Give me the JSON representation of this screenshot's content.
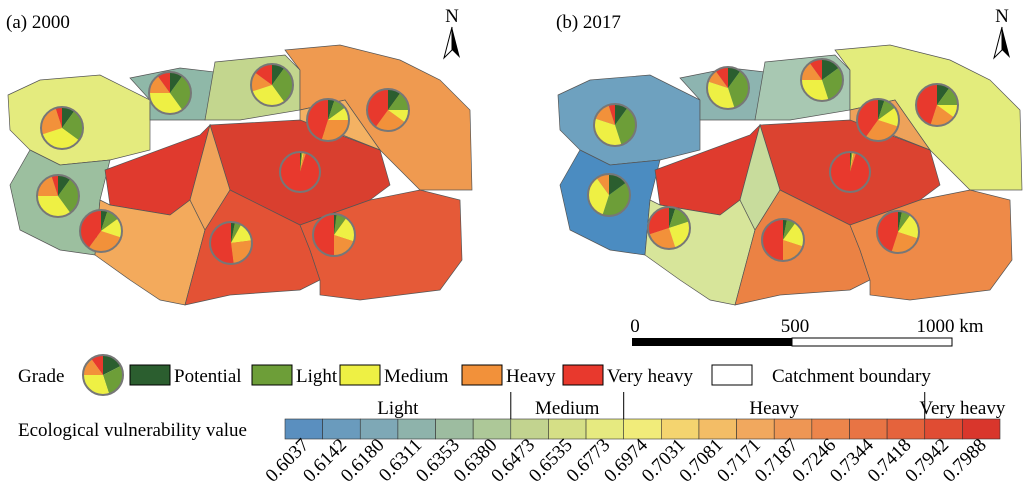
{
  "panels": [
    {
      "title": "(a) 2000",
      "north": "N",
      "region_colors": [
        "#e4eb7e",
        "#8fb8a8",
        "#c3d68e",
        "#ef9a50",
        "#f4b263",
        "#9cbf9f",
        "#e03a2e",
        "#d93f2f",
        "#f3aa5c",
        "#f1a45a",
        "#e35235",
        "#e55a38"
      ],
      "pies": [
        [
          10,
          30,
          35,
          15,
          10
        ],
        [
          10,
          30,
          30,
          15,
          15
        ],
        [
          10,
          15,
          10,
          25,
          40
        ],
        [
          5,
          10,
          10,
          30,
          45
        ],
        [
          10,
          25,
          35,
          25,
          5
        ],
        [
          10,
          30,
          35,
          20,
          5
        ],
        [
          5,
          10,
          15,
          30,
          40
        ],
        [
          1,
          1,
          1,
          2,
          95
        ],
        [
          3,
          5,
          15,
          25,
          52
        ],
        [
          2,
          8,
          20,
          20,
          50
        ]
      ]
    },
    {
      "title": "(b) 2017",
      "north": "N",
      "region_colors": [
        "#6ea1bf",
        "#8db4b0",
        "#a8c8b2",
        "#e3ec7c",
        "#eea25a",
        "#4b8cc1",
        "#df3b2e",
        "#db4330",
        "#d7e59a",
        "#c8dc9c",
        "#eb8244",
        "#ee8a48"
      ],
      "pies": [
        [
          10,
          35,
          35,
          10,
          10
        ],
        [
          15,
          30,
          30,
          15,
          10
        ],
        [
          10,
          15,
          10,
          20,
          45
        ],
        [
          5,
          10,
          15,
          30,
          40
        ],
        [
          10,
          35,
          35,
          15,
          5
        ],
        [
          15,
          40,
          35,
          10,
          0
        ],
        [
          5,
          15,
          25,
          25,
          30
        ],
        [
          1,
          1,
          1,
          2,
          95
        ],
        [
          3,
          7,
          20,
          20,
          50
        ],
        [
          3,
          7,
          20,
          25,
          45
        ]
      ]
    }
  ],
  "grade_legend": {
    "title": "Grade",
    "items": [
      {
        "name": "Potential",
        "color": "#2b5e2f"
      },
      {
        "name": "Light",
        "color": "#6d9e38"
      },
      {
        "name": "Medium",
        "color": "#eef044"
      },
      {
        "name": "Heavy",
        "color": "#f2913a"
      },
      {
        "name": "Very heavy",
        "color": "#e8392d"
      },
      {
        "name": "Catchment boundary",
        "color": "#ffffff"
      }
    ]
  },
  "colorbar": {
    "title": "Ecological vulnerability value",
    "classes": [
      "Light",
      "Medium",
      "Heavy",
      "Very heavy"
    ],
    "colors": [
      "#5a8fbf",
      "#6a9bbd",
      "#7ea8b6",
      "#8eb3ab",
      "#9dbca0",
      "#adc898",
      "#c2d38f",
      "#d5df86",
      "#e6ea80",
      "#f1ec7a",
      "#f4d46f",
      "#f3bd66",
      "#f1a85e",
      "#ee9654",
      "#ec854b",
      "#e87444",
      "#e5633c",
      "#e04c33",
      "#d9362c"
    ],
    "labels": [
      "0.6037",
      "0.6142",
      "0.6180",
      "0.6311",
      "0.6353",
      "0.6380",
      "0.6473",
      "0.6535",
      "0.6773",
      "0.6974",
      "0.7031",
      "0.7081",
      "0.7171",
      "0.7187",
      "0.7246",
      "0.7344",
      "0.7418",
      "0.7942",
      "0.7988"
    ]
  },
  "scalebar": {
    "labels": [
      "0",
      "500",
      "1000 km"
    ]
  }
}
